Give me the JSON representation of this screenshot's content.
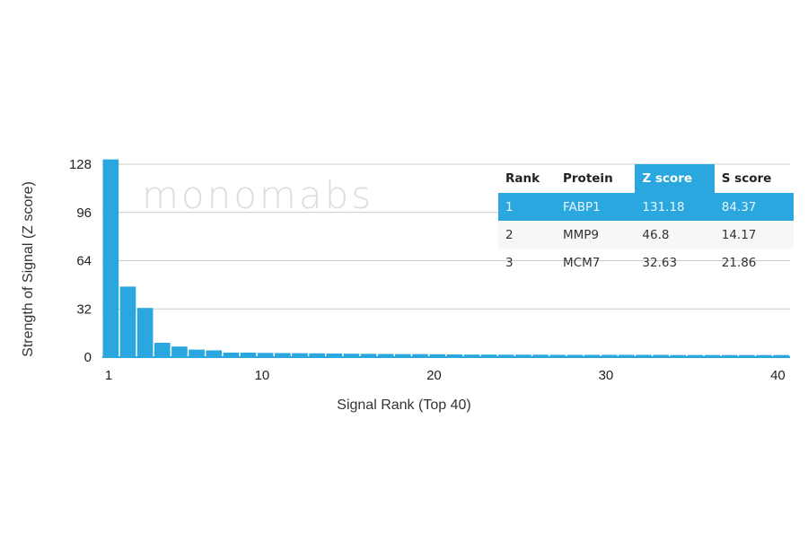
{
  "chart_data": {
    "type": "bar",
    "title": "",
    "xlabel": "Signal Rank (Top 40)",
    "ylabel": "Strength of Signal (Z score)",
    "ylim": [
      0,
      128
    ],
    "yticks": [
      0,
      32,
      64,
      96,
      128
    ],
    "xticks": [
      1,
      10,
      20,
      30,
      40
    ],
    "grid": true,
    "bar_color": "#2aa7df",
    "x": [
      1,
      2,
      3,
      4,
      5,
      6,
      7,
      8,
      9,
      10,
      11,
      12,
      13,
      14,
      15,
      16,
      17,
      18,
      19,
      20,
      21,
      22,
      23,
      24,
      25,
      26,
      27,
      28,
      29,
      30,
      31,
      32,
      33,
      34,
      35,
      36,
      37,
      38,
      39,
      40
    ],
    "values": [
      131.18,
      46.8,
      32.63,
      9.5,
      7,
      5,
      4.5,
      3,
      3,
      2.8,
      2.7,
      2.6,
      2.5,
      2.4,
      2.3,
      2.2,
      2.1,
      2.0,
      2.0,
      1.9,
      1.8,
      1.7,
      1.7,
      1.6,
      1.6,
      1.6,
      1.5,
      1.5,
      1.5,
      1.5,
      1.5,
      1.5,
      1.5,
      1.4,
      1.4,
      1.4,
      1.4,
      1.4,
      1.4,
      1.4
    ]
  },
  "watermark": "monomabs",
  "table": {
    "headers": [
      "Rank",
      "Protein",
      "Z score",
      "S score"
    ],
    "rows": [
      [
        "1",
        "FABP1",
        "131.18",
        "84.37"
      ],
      [
        "2",
        "MMP9",
        "46.8",
        "14.17"
      ],
      [
        "3",
        "MCM7",
        "32.63",
        "21.86"
      ]
    ]
  }
}
